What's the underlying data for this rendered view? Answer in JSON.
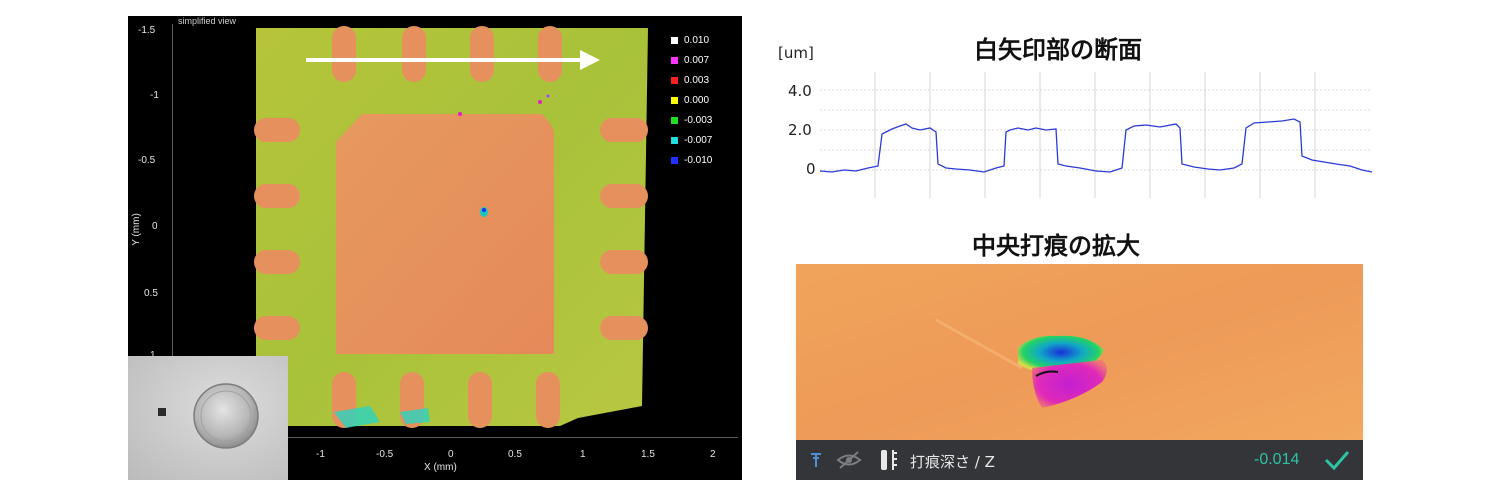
{
  "left_plot": {
    "view_label": "simplified view",
    "y_axis_label": "Y (mm)",
    "x_axis_label": "X (mm)",
    "y_ticks": [
      "-1.5",
      "-1",
      "-0.5",
      "0",
      "0.5",
      "1"
    ],
    "x_ticks": [
      "-1",
      "-0.5",
      "0",
      "0.5",
      "1",
      "1.5",
      "2"
    ],
    "legend": [
      {
        "value": "0.010",
        "color": "#ffffff"
      },
      {
        "value": "0.007",
        "color": "#ff33ff"
      },
      {
        "value": "0.003",
        "color": "#ff2020"
      },
      {
        "value": "0.000",
        "color": "#ffff00"
      },
      {
        "value": "-0.003",
        "color": "#22dd22"
      },
      {
        "value": "-0.007",
        "color": "#22dddd"
      },
      {
        "value": "-0.010",
        "color": "#2030ff"
      }
    ]
  },
  "profile": {
    "title": "白矢印部の断面",
    "unit": "[um]",
    "y_ticks": [
      "4.0",
      "2.0",
      "0"
    ]
  },
  "zoom": {
    "title": "中央打痕の拡大"
  },
  "status_bar": {
    "label": "打痕深さ / Z",
    "value": "-0.014",
    "accent_color": "#2ec3a4"
  },
  "icons": [
    "pin-icon",
    "hidden-eye-icon",
    "height-gauge-icon",
    "checkmark-icon"
  ]
}
